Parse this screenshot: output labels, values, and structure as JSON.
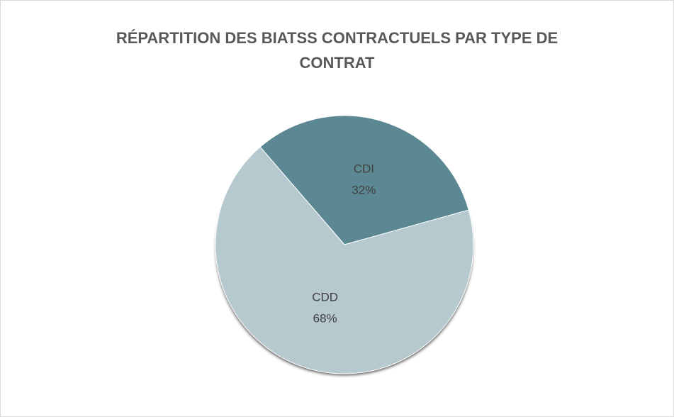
{
  "chart_data": {
    "type": "pie",
    "title": "RÉPARTITION DES BIATSS CONTRACTUELS PAR TYPE DE CONTRAT",
    "categories": [
      "CDI",
      "CDD"
    ],
    "values": [
      32,
      68
    ],
    "value_labels": [
      "32%",
      "68%"
    ],
    "colors": [
      "#5b8893",
      "#b5c9ce"
    ]
  }
}
